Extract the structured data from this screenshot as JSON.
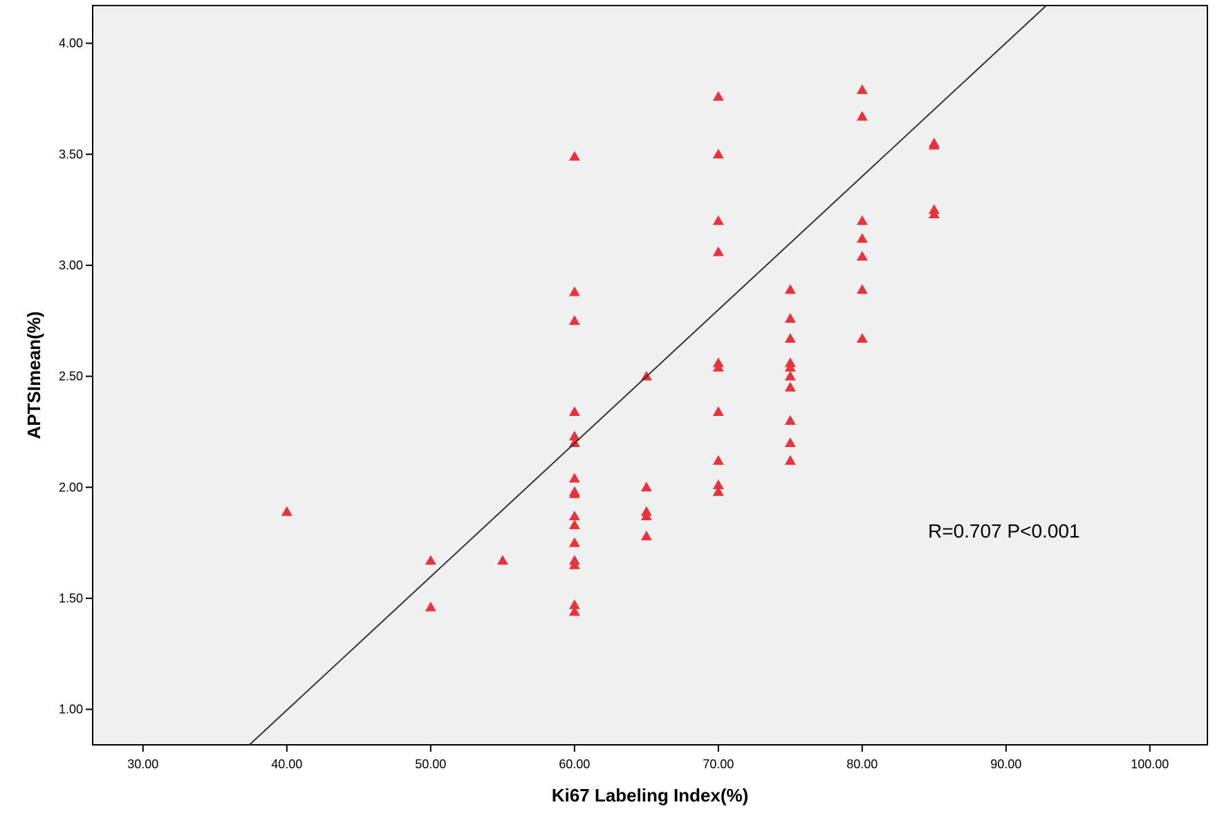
{
  "chart_data": {
    "type": "scatter",
    "title": "",
    "xlabel": "Ki67 Labeling Index(%)",
    "ylabel": "APTSImean(%)",
    "xlim": [
      26.5,
      104
    ],
    "ylim": [
      0.84,
      4.17
    ],
    "x_ticks": [
      "30.00",
      "40.00",
      "50.00",
      "60.00",
      "70.00",
      "80.00",
      "90.00",
      "100.00"
    ],
    "x_tick_values": [
      30,
      40,
      50,
      60,
      70,
      80,
      90,
      100
    ],
    "y_ticks": [
      "1.00",
      "1.50",
      "2.00",
      "2.50",
      "3.00",
      "3.50",
      "4.00"
    ],
    "y_tick_values": [
      1.0,
      1.5,
      2.0,
      2.5,
      3.0,
      3.5,
      4.0
    ],
    "grid": false,
    "marker": "triangle",
    "colors": {
      "marker": "#e8323c",
      "plot_bg": "#f0f0f0",
      "line": "#333333"
    },
    "points": [
      [
        40,
        1.89
      ],
      [
        50,
        1.67
      ],
      [
        50,
        1.46
      ],
      [
        55,
        1.67
      ],
      [
        60,
        3.49
      ],
      [
        60,
        2.88
      ],
      [
        60,
        2.75
      ],
      [
        60,
        2.34
      ],
      [
        60,
        2.23
      ],
      [
        60,
        2.2
      ],
      [
        60,
        2.04
      ],
      [
        60,
        1.98
      ],
      [
        60,
        1.97
      ],
      [
        60,
        1.87
      ],
      [
        60,
        1.83
      ],
      [
        60,
        1.75
      ],
      [
        60,
        1.67
      ],
      [
        60,
        1.65
      ],
      [
        60,
        1.47
      ],
      [
        60,
        1.44
      ],
      [
        65,
        2.5
      ],
      [
        65,
        2.0
      ],
      [
        65,
        1.89
      ],
      [
        65,
        1.87
      ],
      [
        65,
        1.78
      ],
      [
        70,
        3.76
      ],
      [
        70,
        3.5
      ],
      [
        70,
        3.2
      ],
      [
        70,
        3.06
      ],
      [
        70,
        2.56
      ],
      [
        70,
        2.54
      ],
      [
        70,
        2.34
      ],
      [
        70,
        2.12
      ],
      [
        70,
        2.01
      ],
      [
        70,
        1.98
      ],
      [
        75,
        2.89
      ],
      [
        75,
        2.76
      ],
      [
        75,
        2.67
      ],
      [
        75,
        2.56
      ],
      [
        75,
        2.54
      ],
      [
        75,
        2.5
      ],
      [
        75,
        2.45
      ],
      [
        75,
        2.3
      ],
      [
        75,
        2.2
      ],
      [
        75,
        2.12
      ],
      [
        80,
        3.79
      ],
      [
        80,
        3.67
      ],
      [
        80,
        3.2
      ],
      [
        80,
        3.12
      ],
      [
        80,
        3.04
      ],
      [
        80,
        2.89
      ],
      [
        80,
        2.67
      ],
      [
        85,
        3.55
      ],
      [
        85,
        3.54
      ],
      [
        85,
        3.25
      ],
      [
        85,
        3.23
      ]
    ],
    "fit_line": {
      "x1": 37.4,
      "y1": 0.84,
      "x2": 92.8,
      "y2": 4.17
    },
    "annotation": "R=0.707   P<0.001"
  }
}
